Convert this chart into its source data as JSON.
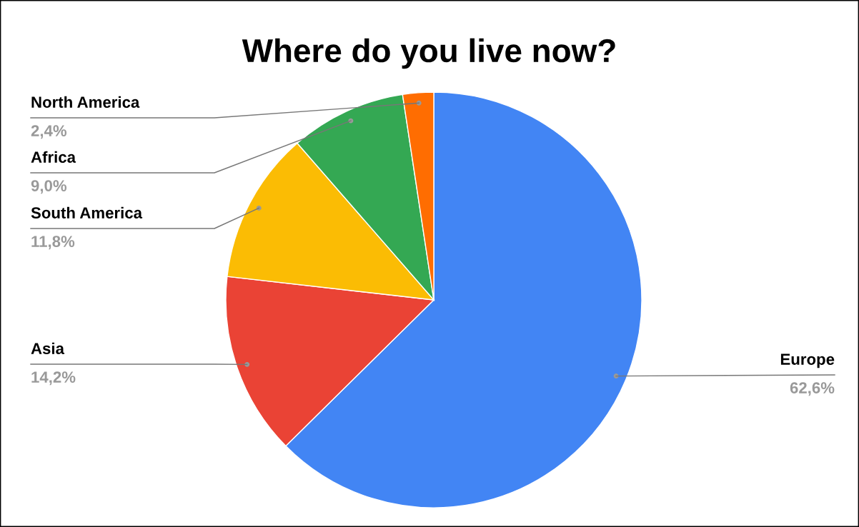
{
  "chart_data": {
    "type": "pie",
    "title": "Where do you live now?",
    "categories": [
      "Europe",
      "Asia",
      "South America",
      "Africa",
      "North America"
    ],
    "values": [
      62.6,
      14.2,
      11.8,
      9.0,
      2.4
    ],
    "colors": [
      "#4285f4",
      "#ea4335",
      "#fbbc04",
      "#34a853",
      "#ff6d01"
    ],
    "value_labels": [
      "62,6%",
      "14,2%",
      "11,8%",
      "9,0%",
      "2,4%"
    ]
  }
}
